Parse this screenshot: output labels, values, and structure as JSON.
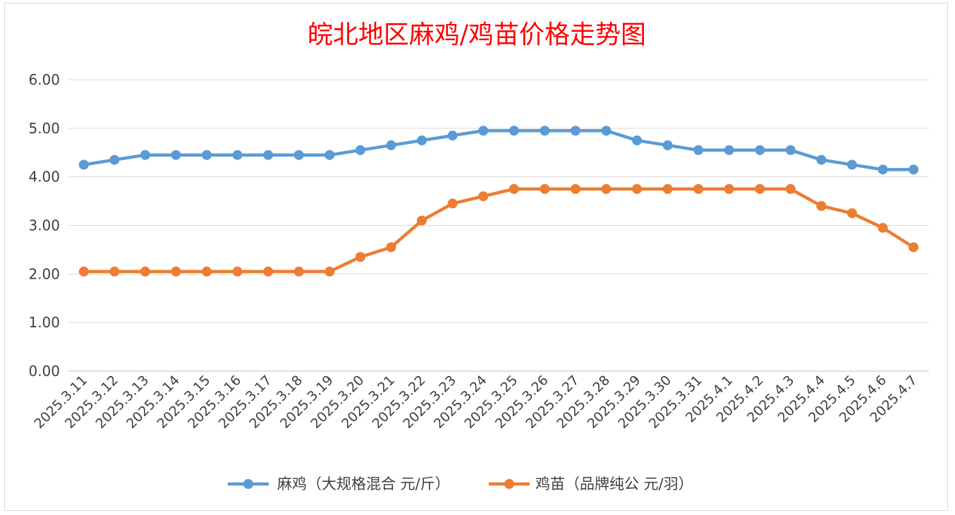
{
  "chart_data": {
    "type": "line",
    "title": "皖北地区麻鸡/鸡苗价格走势图",
    "xlabel": "",
    "ylabel": "",
    "ylim": [
      0,
      6
    ],
    "yticks": [
      "0.00",
      "1.00",
      "2.00",
      "3.00",
      "4.00",
      "5.00",
      "6.00"
    ],
    "grid": true,
    "legend_position": "bottom",
    "categories": [
      "2025.3.11",
      "2025.3.12",
      "2025.3.13",
      "2025.3.14",
      "2025.3.15",
      "2025.3.16",
      "2025.3.17",
      "2025.3.18",
      "2025.3.19",
      "2025.3.20",
      "2025.3.21",
      "2025.3.22",
      "2025.3.23",
      "2025.3.24",
      "2025.3.25",
      "2025.3.26",
      "2025.3.27",
      "2025.3.28",
      "2025.3.29",
      "2025.3.30",
      "2025.3.31",
      "2025.4.1",
      "2025.4.2",
      "2025.4.3",
      "2025.4.4",
      "2025.4.5",
      "2025.4.6",
      "2025.4.7"
    ],
    "series": [
      {
        "name": "麻鸡（大规格混合 元/斤）",
        "color": "#5b9bd5",
        "values": [
          4.25,
          4.35,
          4.45,
          4.45,
          4.45,
          4.45,
          4.45,
          4.45,
          4.45,
          4.55,
          4.65,
          4.75,
          4.85,
          4.95,
          4.95,
          4.95,
          4.95,
          4.95,
          4.75,
          4.65,
          4.55,
          4.55,
          4.55,
          4.55,
          4.35,
          4.25,
          4.15,
          4.15
        ]
      },
      {
        "name": "鸡苗（品牌纯公 元/羽）",
        "color": "#ed7d31",
        "values": [
          2.05,
          2.05,
          2.05,
          2.05,
          2.05,
          2.05,
          2.05,
          2.05,
          2.05,
          2.35,
          2.55,
          3.1,
          3.45,
          3.6,
          3.75,
          3.75,
          3.75,
          3.75,
          3.75,
          3.75,
          3.75,
          3.75,
          3.75,
          3.75,
          3.4,
          3.25,
          2.95,
          2.55
        ]
      }
    ]
  }
}
